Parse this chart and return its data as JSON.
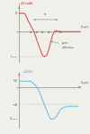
{
  "fig_width": 1.0,
  "fig_height": 1.49,
  "dpi": 100,
  "bg_color": "#f0f0eb",
  "top_panel": {
    "line_color": "#d94040",
    "axis_color": "#888888",
    "xlim": [
      -0.5,
      10.5
    ],
    "ylim": [
      -1.7,
      1.5
    ]
  },
  "bottom_panel": {
    "line_color": "#6abcd8",
    "axis_color": "#888888",
    "xlim": [
      -0.5,
      10.5
    ],
    "ylim": [
      -2.0,
      0.7
    ]
  }
}
